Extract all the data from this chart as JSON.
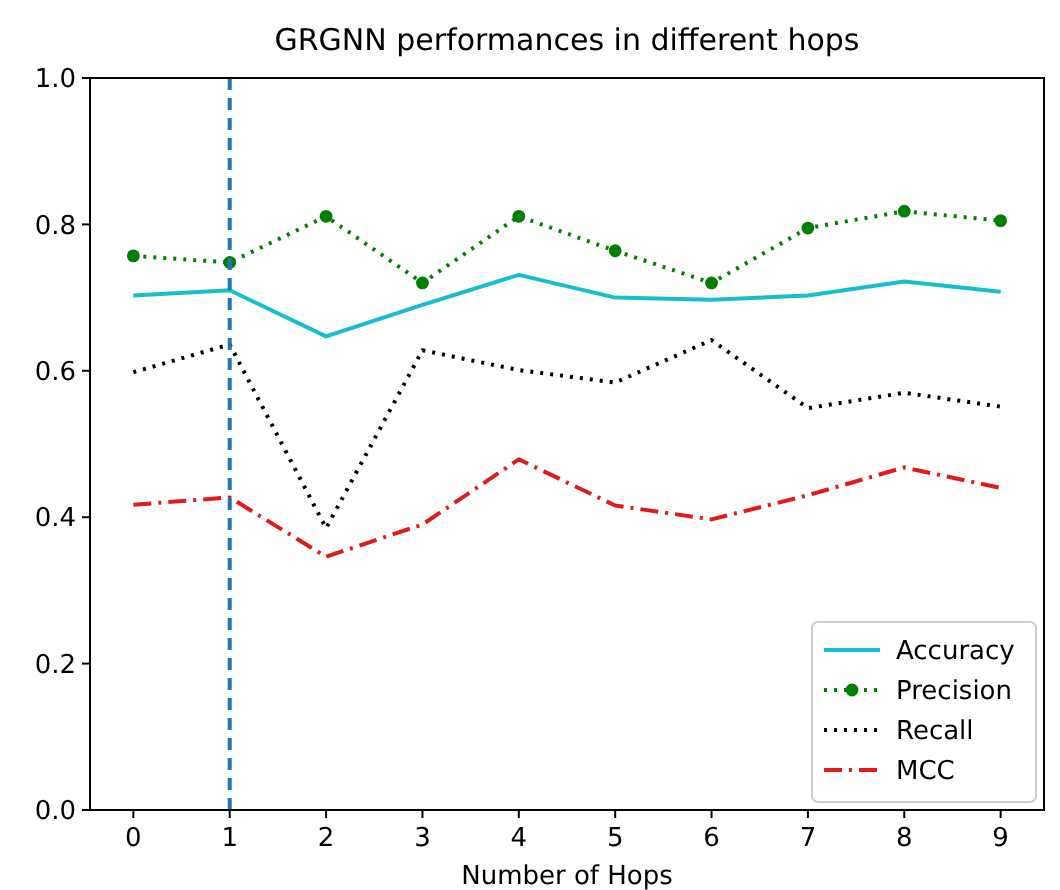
{
  "chart_data": {
    "type": "line",
    "title": "GRGNN performances in different hops",
    "xlabel": "Number of Hops",
    "x": [
      0,
      1,
      2,
      3,
      4,
      5,
      6,
      7,
      8,
      9
    ],
    "series": [
      {
        "name": "Accuracy",
        "color": "#17becf",
        "line_style": "solid",
        "marker": "none",
        "values": [
          0.703,
          0.71,
          0.647,
          0.69,
          0.731,
          0.7,
          0.697,
          0.703,
          0.722,
          0.708
        ]
      },
      {
        "name": "Precision",
        "color": "#008000",
        "line_style": "dotted",
        "marker": "circle",
        "values": [
          0.757,
          0.748,
          0.811,
          0.72,
          0.811,
          0.764,
          0.72,
          0.795,
          0.818,
          0.805
        ]
      },
      {
        "name": "Recall",
        "color": "#000000",
        "line_style": "dotted",
        "marker": "none",
        "values": [
          0.598,
          0.636,
          0.385,
          0.628,
          0.601,
          0.584,
          0.642,
          0.549,
          0.57,
          0.551
        ]
      },
      {
        "name": "MCC",
        "color": "#e31a1c",
        "line_style": "dashdot",
        "marker": "none",
        "values": [
          0.417,
          0.427,
          0.346,
          0.39,
          0.479,
          0.416,
          0.397,
          0.43,
          0.468,
          0.44
        ]
      }
    ],
    "xlim": [
      -0.45,
      9.45
    ],
    "xticks": [
      0,
      1,
      2,
      3,
      4,
      5,
      6,
      7,
      8,
      9
    ],
    "ylim": [
      0,
      1
    ],
    "yticks": [
      {
        "value": 0,
        "label": "0.0"
      },
      0.2,
      0.4,
      0.6,
      0.8,
      {
        "value": 1,
        "label": "1.0"
      }
    ],
    "ref_lines": [
      {
        "axis": "x",
        "value": 1,
        "color": "#1f77b4",
        "line_style": "dashed"
      }
    ],
    "legend": "bottom right",
    "grid": false
  }
}
